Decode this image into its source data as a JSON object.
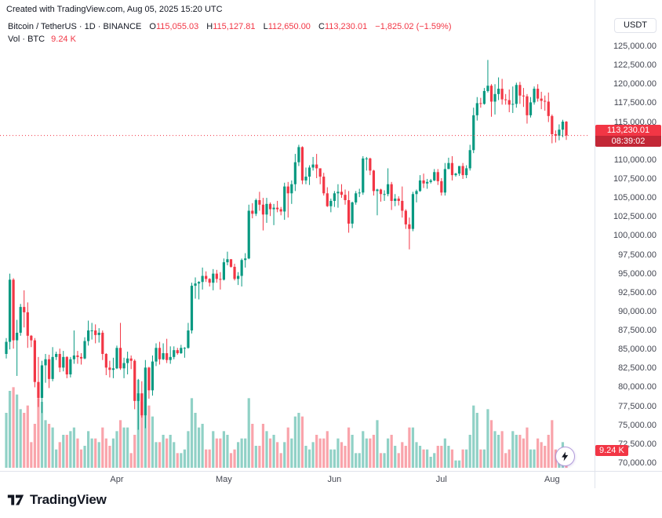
{
  "header": {
    "created_with": "Created with TradingView.com, Aug 05, 2025 15:20 UTC"
  },
  "legend": {
    "title": "Bitcoin / TetherUS · 1D · BINANCE",
    "ohlc": {
      "o_label": "O",
      "o_value": "115,055.03",
      "h_label": "H",
      "h_value": "115,127.81",
      "l_label": "L",
      "l_value": "112,650.00",
      "c_label": "C",
      "c_value": "113,230.01",
      "change": "−1,825.02 (−1.59%)"
    },
    "vol_label": "Vol · BTC",
    "vol_value": "9.24 K"
  },
  "toolbar": {
    "currency_button": "USDT"
  },
  "price_scale": {
    "max": 125000,
    "min": 70000,
    "step": 2500,
    "labels": [
      "125,000.00",
      "122,500.00",
      "120,000.00",
      "117,500.00",
      "115,000.00",
      "112,500.00",
      "110,000.00",
      "107,500.00",
      "105,000.00",
      "102,500.00",
      "100,000.00",
      "97,500.00",
      "95,000.00",
      "92,500.00",
      "90,000.00",
      "87,500.00",
      "85,000.00",
      "82,500.00",
      "80,000.00",
      "77,500.00",
      "75,000.00",
      "72,500.00",
      "70,000.00"
    ]
  },
  "price_line": {
    "value": 113230.01,
    "price": "113,230.01",
    "countdown": "08:39:02"
  },
  "volume_badge": "9.24 K",
  "x_axis": {
    "months": [
      "Apr",
      "May",
      "Jun",
      "Jul",
      "Aug"
    ]
  },
  "footer": {
    "brand": "TradingView"
  },
  "colors": {
    "up": "#089981",
    "down": "#f23645",
    "vol_up": "rgba(8,153,129,0.45)",
    "vol_down": "rgba(242,54,69,0.45)",
    "badge_bg": "#f23645",
    "countdown_bg": "#c22736",
    "axis_text": "#434651",
    "text": "#131722"
  },
  "chart_data": {
    "type": "candlestick",
    "title": "Bitcoin / TetherUS, 1D, BINANCE",
    "symbol": "Bitcoin / TetherUS",
    "interval": "1D",
    "exchange": "BINANCE",
    "start_date": "2025-03-01",
    "columns": [
      "open",
      "high",
      "low",
      "close",
      "volume_k_btc"
    ],
    "y_range": [
      70000,
      125000
    ],
    "volume_unit": "K BTC",
    "last_price": 113230.01,
    "candles": [
      [
        84400,
        86500,
        83800,
        86000,
        30
      ],
      [
        86000,
        95000,
        85000,
        94200,
        42
      ],
      [
        94200,
        94400,
        85100,
        86200,
        44
      ],
      [
        86200,
        88900,
        81500,
        87200,
        40
      ],
      [
        87200,
        91000,
        86800,
        90600,
        32
      ],
      [
        90600,
        92800,
        87900,
        89900,
        30
      ],
      [
        89900,
        91200,
        85200,
        86800,
        34
      ],
      [
        86800,
        86900,
        85300,
        86200,
        14
      ],
      [
        86200,
        86500,
        80000,
        80700,
        24
      ],
      [
        80700,
        84000,
        77400,
        78600,
        38
      ],
      [
        78600,
        83500,
        76600,
        82900,
        36
      ],
      [
        82900,
        84400,
        80600,
        83700,
        26
      ],
      [
        83700,
        84300,
        79900,
        81100,
        24
      ],
      [
        81100,
        85300,
        80800,
        84000,
        22
      ],
      [
        84000,
        84700,
        83600,
        84400,
        10
      ],
      [
        84400,
        85100,
        82000,
        82600,
        14
      ],
      [
        82600,
        84800,
        82100,
        84000,
        18
      ],
      [
        84000,
        84100,
        81200,
        81700,
        18
      ],
      [
        81700,
        84000,
        81300,
        83700,
        20
      ],
      [
        83700,
        87500,
        83100,
        84200,
        22
      ],
      [
        84200,
        84800,
        83100,
        84000,
        16
      ],
      [
        84000,
        84500,
        83000,
        83800,
        10
      ],
      [
        83800,
        86600,
        83700,
        86100,
        12
      ],
      [
        86100,
        88800,
        85500,
        87500,
        20
      ],
      [
        87500,
        88500,
        86300,
        87500,
        16
      ],
      [
        87500,
        88300,
        85800,
        86900,
        16
      ],
      [
        86900,
        87800,
        85900,
        87200,
        14
      ],
      [
        87200,
        87500,
        83600,
        84400,
        22
      ],
      [
        84400,
        84500,
        81600,
        82600,
        16
      ],
      [
        82600,
        83500,
        81300,
        82300,
        12
      ],
      [
        82300,
        83900,
        81200,
        82500,
        16
      ],
      [
        82500,
        85500,
        82400,
        85200,
        20
      ],
      [
        85200,
        88500,
        82300,
        82500,
        26
      ],
      [
        82500,
        83900,
        81200,
        83200,
        22
      ],
      [
        83200,
        84700,
        81700,
        83800,
        22
      ],
      [
        83800,
        84200,
        82400,
        83500,
        8
      ],
      [
        83500,
        83700,
        77100,
        78200,
        18
      ],
      [
        78200,
        81100,
        74400,
        79200,
        48
      ],
      [
        79200,
        80800,
        76000,
        76300,
        36
      ],
      [
        76300,
        83600,
        74600,
        82600,
        46
      ],
      [
        82600,
        82700,
        78500,
        79600,
        34
      ],
      [
        79600,
        84200,
        78900,
        83400,
        28
      ],
      [
        83400,
        85800,
        82800,
        85200,
        14
      ],
      [
        85200,
        86000,
        83000,
        83700,
        14
      ],
      [
        83700,
        85800,
        83600,
        84500,
        18
      ],
      [
        84500,
        86400,
        83200,
        83600,
        16
      ],
      [
        83600,
        85400,
        83100,
        84000,
        18
      ],
      [
        84000,
        85400,
        83700,
        84900,
        14
      ],
      [
        84900,
        85200,
        84300,
        84500,
        8
      ],
      [
        84500,
        85600,
        84400,
        85200,
        8
      ],
      [
        85200,
        85300,
        83900,
        85200,
        10
      ],
      [
        85200,
        88500,
        85100,
        87500,
        20
      ],
      [
        87500,
        93800,
        87100,
        93400,
        38
      ],
      [
        93400,
        94500,
        91700,
        93700,
        30
      ],
      [
        93700,
        94000,
        91600,
        93900,
        22
      ],
      [
        93900,
        95800,
        92900,
        94700,
        24
      ],
      [
        94700,
        95300,
        93900,
        94300,
        10
      ],
      [
        94300,
        94400,
        93300,
        93800,
        10
      ],
      [
        93800,
        95600,
        92800,
        95000,
        20
      ],
      [
        95000,
        95500,
        93800,
        94300,
        16
      ],
      [
        94300,
        95200,
        92900,
        94200,
        16
      ],
      [
        94200,
        97000,
        94100,
        96500,
        20
      ],
      [
        96500,
        97900,
        96100,
        96900,
        18
      ],
      [
        96900,
        96900,
        95800,
        95900,
        8
      ],
      [
        95900,
        96300,
        94100,
        94300,
        10
      ],
      [
        94300,
        95200,
        93500,
        94700,
        14
      ],
      [
        94700,
        97000,
        93300,
        96800,
        16
      ],
      [
        96800,
        97700,
        95800,
        97000,
        16
      ],
      [
        97000,
        104100,
        96900,
        103300,
        38
      ],
      [
        103300,
        104300,
        102300,
        102900,
        24
      ],
      [
        102900,
        104900,
        102600,
        104700,
        12
      ],
      [
        104700,
        105800,
        103300,
        104100,
        12
      ],
      [
        104100,
        105000,
        100700,
        102800,
        24
      ],
      [
        102800,
        105000,
        101700,
        104200,
        20
      ],
      [
        104200,
        104400,
        102600,
        103500,
        16
      ],
      [
        103500,
        104200,
        101400,
        103700,
        18
      ],
      [
        103700,
        104600,
        103100,
        103500,
        14
      ],
      [
        103500,
        103800,
        102700,
        103200,
        8
      ],
      [
        103200,
        107000,
        102100,
        106500,
        14
      ],
      [
        106500,
        107100,
        102400,
        105600,
        22
      ],
      [
        105600,
        107300,
        104200,
        106800,
        16
      ],
      [
        106800,
        110800,
        105900,
        109700,
        28
      ],
      [
        109700,
        112000,
        109200,
        111700,
        30
      ],
      [
        111700,
        111800,
        106800,
        107300,
        28
      ],
      [
        107300,
        109000,
        106800,
        107800,
        12
      ],
      [
        107800,
        109300,
        106700,
        109000,
        10
      ],
      [
        109000,
        110400,
        108600,
        109400,
        14
      ],
      [
        109400,
        110800,
        107600,
        108900,
        18
      ],
      [
        108900,
        108900,
        106800,
        107800,
        16
      ],
      [
        107800,
        108300,
        105300,
        105600,
        16
      ],
      [
        105600,
        106400,
        103800,
        103900,
        20
      ],
      [
        103900,
        104900,
        103100,
        104600,
        10
      ],
      [
        104600,
        105900,
        103800,
        105600,
        10
      ],
      [
        105600,
        106800,
        103700,
        105800,
        16
      ],
      [
        105800,
        106800,
        105000,
        105400,
        14
      ],
      [
        105400,
        106100,
        104100,
        104700,
        12
      ],
      [
        104700,
        105900,
        100400,
        101600,
        22
      ],
      [
        101600,
        104500,
        101000,
        104400,
        18
      ],
      [
        104400,
        105900,
        104100,
        105600,
        8
      ],
      [
        105600,
        106200,
        105100,
        105700,
        8
      ],
      [
        105700,
        110500,
        105400,
        110200,
        20
      ],
      [
        110200,
        110400,
        108600,
        110200,
        16
      ],
      [
        110200,
        110300,
        108000,
        108600,
        16
      ],
      [
        108600,
        108700,
        105300,
        105900,
        18
      ],
      [
        105900,
        106200,
        102700,
        106100,
        26
      ],
      [
        106100,
        106200,
        104500,
        105500,
        8
      ],
      [
        105500,
        106000,
        104600,
        105500,
        8
      ],
      [
        105500,
        108900,
        105200,
        106800,
        16
      ],
      [
        106800,
        107100,
        103400,
        104600,
        18
      ],
      [
        104600,
        105500,
        103900,
        104900,
        12
      ],
      [
        104900,
        105200,
        104000,
        104600,
        8
      ],
      [
        104600,
        106500,
        102400,
        103300,
        14
      ],
      [
        103300,
        103500,
        100900,
        101500,
        12
      ],
      [
        101500,
        102400,
        98200,
        100900,
        22
      ],
      [
        100900,
        105800,
        100600,
        105500,
        22
      ],
      [
        105500,
        106100,
        104400,
        105900,
        14
      ],
      [
        105900,
        108000,
        105800,
        107300,
        12
      ],
      [
        107300,
        108200,
        106300,
        106900,
        10
      ],
      [
        106900,
        107500,
        106200,
        107100,
        10
      ],
      [
        107100,
        107500,
        106900,
        107300,
        6
      ],
      [
        107300,
        108800,
        107200,
        108400,
        8
      ],
      [
        108400,
        108800,
        106700,
        107200,
        12
      ],
      [
        107200,
        107600,
        105300,
        105700,
        12
      ],
      [
        105700,
        109600,
        105300,
        108800,
        16
      ],
      [
        108800,
        110300,
        108800,
        109600,
        12
      ],
      [
        109600,
        110500,
        107300,
        108000,
        10
      ],
      [
        108000,
        108300,
        107800,
        108200,
        4
      ],
      [
        108200,
        109200,
        107900,
        109200,
        4
      ],
      [
        109200,
        109600,
        107500,
        108000,
        10
      ],
      [
        108000,
        109300,
        107600,
        108900,
        10
      ],
      [
        108900,
        112000,
        108600,
        111300,
        18
      ],
      [
        111300,
        116900,
        110900,
        115900,
        34
      ],
      [
        115900,
        118300,
        115200,
        117500,
        30
      ],
      [
        117500,
        118200,
        116900,
        117400,
        10
      ],
      [
        117400,
        119500,
        117300,
        119100,
        10
      ],
      [
        119100,
        123200,
        118900,
        119800,
        32
      ],
      [
        119800,
        120000,
        115700,
        117700,
        26
      ],
      [
        117700,
        120000,
        116000,
        118700,
        20
      ],
      [
        118700,
        120900,
        117900,
        119400,
        18
      ],
      [
        119400,
        120700,
        117300,
        118000,
        20
      ],
      [
        118000,
        118700,
        117300,
        117900,
        8
      ],
      [
        117900,
        119300,
        116300,
        117300,
        10
      ],
      [
        117300,
        119700,
        116200,
        117400,
        20
      ],
      [
        117400,
        120200,
        116900,
        119900,
        18
      ],
      [
        119900,
        120300,
        117400,
        118500,
        18
      ],
      [
        118500,
        119500,
        117000,
        118400,
        16
      ],
      [
        118400,
        118700,
        114800,
        115900,
        22
      ],
      [
        115900,
        118300,
        115600,
        117600,
        10
      ],
      [
        117600,
        119700,
        117300,
        119400,
        10
      ],
      [
        119400,
        120000,
        117700,
        118100,
        16
      ],
      [
        118100,
        119000,
        116700,
        117800,
        14
      ],
      [
        117800,
        118500,
        116500,
        117700,
        12
      ],
      [
        117700,
        118900,
        115000,
        115800,
        18
      ],
      [
        115800,
        116000,
        112200,
        113400,
        26
      ],
      [
        113400,
        113900,
        112300,
        113200,
        10
      ],
      [
        113200,
        114700,
        112600,
        114000,
        8
      ],
      [
        114000,
        115300,
        113000,
        115055,
        14
      ],
      [
        115055.03,
        115127.81,
        112650,
        113230.01,
        9.24
      ]
    ]
  }
}
